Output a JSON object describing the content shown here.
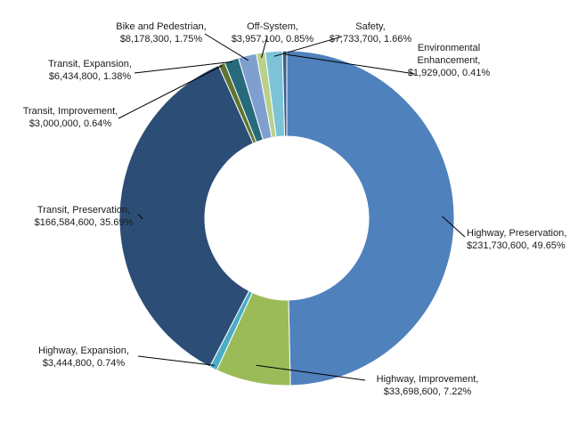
{
  "chart_data": {
    "type": "pie",
    "variant": "donut",
    "title": "",
    "legend": "none",
    "slices": [
      {
        "name": "Highway, Preservation",
        "value": 231730600,
        "percent": 49.65,
        "value_label": "$231,730,600, 49.65%",
        "color": "#4f81bd"
      },
      {
        "name": "Highway, Improvement",
        "value": 33698600,
        "percent": 7.22,
        "value_label": "$33,698,600, 7.22%",
        "color": "#9bbb59"
      },
      {
        "name": "Highway, Expansion",
        "value": 3444800,
        "percent": 0.74,
        "value_label": "$3,444,800, 0.74%",
        "color": "#4bacc6"
      },
      {
        "name": "Transit, Preservation",
        "value": 166584600,
        "percent": 35.69,
        "value_label": "$166,584,600, 35.69%",
        "color": "#2c4d75"
      },
      {
        "name": "Transit, Improvement",
        "value": 3000000,
        "percent": 0.64,
        "value_label": "$3,000,000, 0.64%",
        "color": "#5f7530"
      },
      {
        "name": "Transit, Expansion",
        "value": 6434800,
        "percent": 1.38,
        "value_label": "$6,434,800, 1.38%",
        "color": "#276a7c"
      },
      {
        "name": "Bike and Pedestrian",
        "value": 8178300,
        "percent": 1.75,
        "value_label": "$8,178,300, 1.75%",
        "color": "#7f9fcf"
      },
      {
        "name": "Off-System",
        "value": 3957100,
        "percent": 0.85,
        "value_label": "$3,957,100, 0.85%",
        "color": "#b9d08a"
      },
      {
        "name": "Safety",
        "value": 7733700,
        "percent": 1.66,
        "value_label": "$7,733,700, 1.66%",
        "color": "#7cc3d8"
      },
      {
        "name": "Environmental Enhancement",
        "value": 1929000,
        "percent": 0.41,
        "value_label": "$1,929,000, 0.41%",
        "color": "#3a5f91"
      }
    ]
  }
}
